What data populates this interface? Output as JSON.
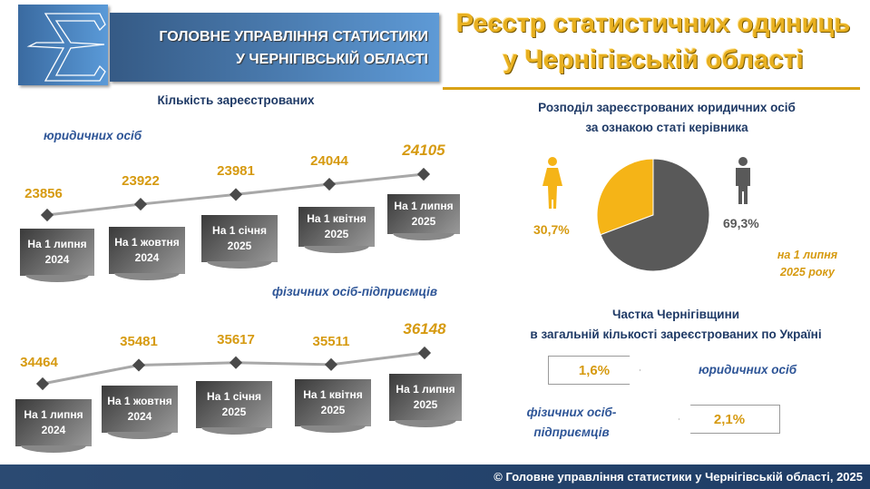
{
  "header": {
    "org_line1": "ГОЛОВНЕ УПРАВЛІННЯ СТАТИСТИКИ",
    "org_line2": "У ЧЕРНІГІВСЬКІЙ ОБЛАСТІ",
    "title_line1": "Реєстр статистичних одиниць",
    "title_line2": "у Чернігівській області"
  },
  "left": {
    "heading": "Кількість зареєстрованих",
    "sub1": "юридичних осіб",
    "sub2": "фізичних осіб-підприємців"
  },
  "chart_data": [
    {
      "type": "line",
      "title": "юридичних осіб",
      "categories": [
        "На 1 липня 2024",
        "На 1 жовтня 2024",
        "На 1 січня 2025",
        "На 1 квітня 2025",
        "На 1 липня 2025"
      ],
      "values": [
        23856,
        23922,
        23981,
        24044,
        24105
      ]
    },
    {
      "type": "line",
      "title": "фізичних осіб-підприємців",
      "categories": [
        "На 1 липня 2024",
        "На 1 жовтня 2024",
        "На 1 січня 2025",
        "На 1 квітня 2025",
        "На 1 липня 2025"
      ],
      "values": [
        34464,
        35481,
        35617,
        35511,
        36148
      ]
    },
    {
      "type": "pie",
      "title": "Розподіл зареєстрованих юридичних осіб за ознакою статі керівника",
      "labels": [
        "жінки",
        "чоловіки"
      ],
      "values": [
        30.7,
        69.3
      ],
      "colors": [
        "#f5b417",
        "#595959"
      ]
    }
  ],
  "labels1": [
    [
      "На 1 липня",
      "2024"
    ],
    [
      "На 1 жовтня",
      "2024"
    ],
    [
      "На 1 січня",
      "2025"
    ],
    [
      "На 1 квітня",
      "2025"
    ],
    [
      "На 1 липня",
      "2025"
    ]
  ],
  "values1": [
    "23856",
    "23922",
    "23981",
    "24044",
    "24105"
  ],
  "values2": [
    "34464",
    "35481",
    "35617",
    "35511",
    "36148"
  ],
  "pie": {
    "heading1": "Розподіл зареєстрованих юридичних осіб",
    "heading2": "за ознакою статі керівника",
    "female_pct": "30,7%",
    "male_pct": "69,3%",
    "date1": "на 1 липня",
    "date2": "2025 року"
  },
  "share": {
    "heading1": "Частка Чернігівщини",
    "heading2": "в загальній кількості зареєстрованих по Україні",
    "legal_value": "1,6%",
    "legal_label": "юридичних осіб",
    "fop_label1": "фізичних осіб-",
    "fop_label2": "підприємців",
    "fop_value": "2,1%"
  },
  "footer": "© Головне управління статистики у Чернігівській області, 2025"
}
